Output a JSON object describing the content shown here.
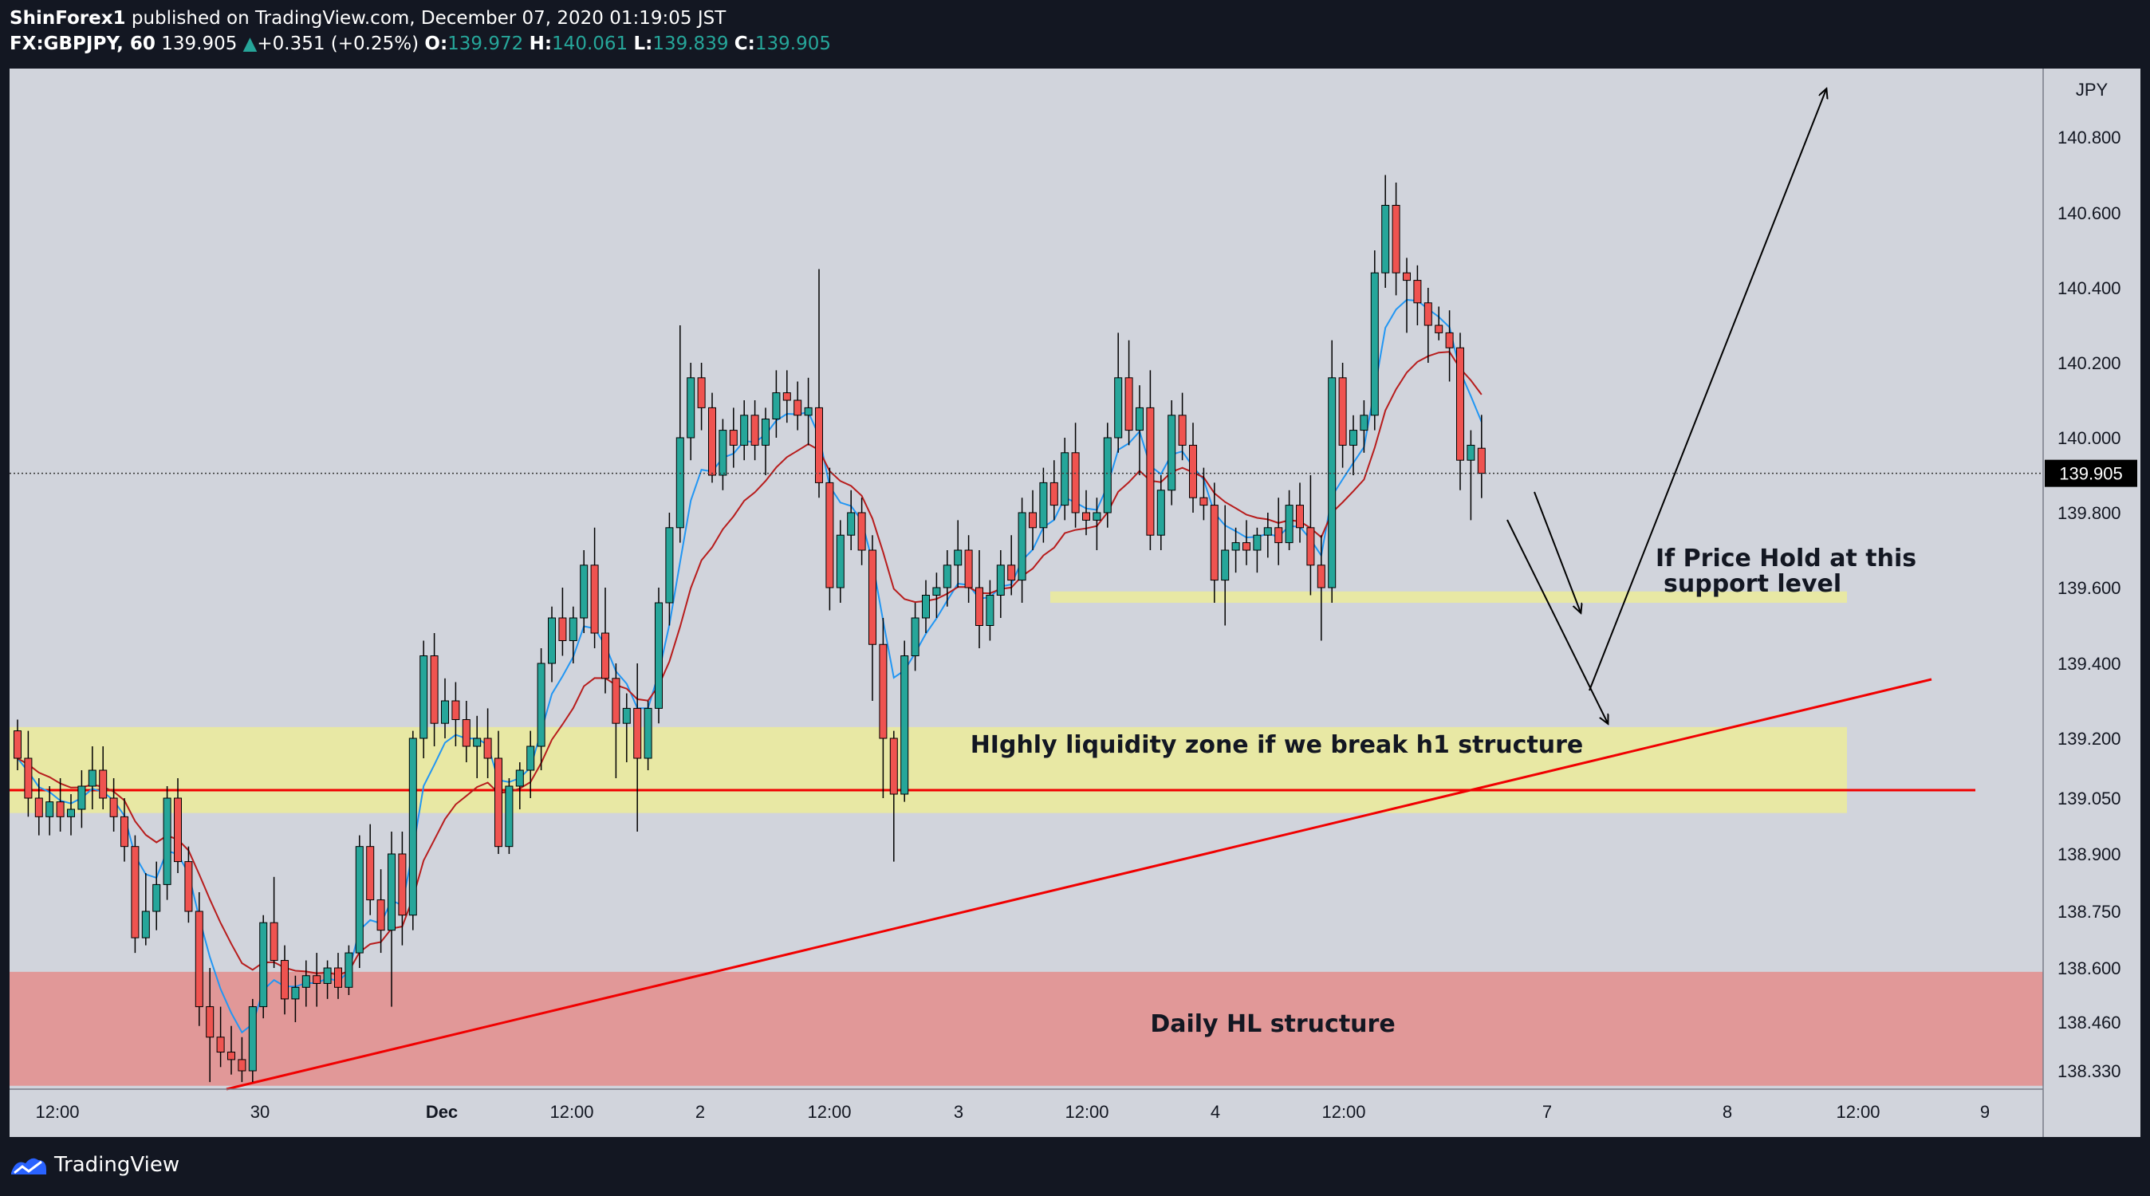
{
  "header": {
    "author": "ShinForex1",
    "published_text": "published on TradingView.com, December 07, 2020 01:19:05 JST",
    "symbol": "FX:GBPJPY, 60",
    "last": "139.905",
    "change_arrow": "▲",
    "change": "+0.351 (+0.25%)",
    "o_label": "O:",
    "o": "139.972",
    "h_label": "H:",
    "h": "140.061",
    "l_label": "L:",
    "l": "139.839",
    "c_label": "C:",
    "c": "139.905"
  },
  "footer": {
    "brand": "TradingView",
    "logo_icon": "tradingview-logo-icon"
  },
  "colors": {
    "background": "#131722",
    "panel": "#d1d4dc",
    "candle_up": "#26a69a",
    "candle_down": "#ef5350",
    "ema_fast": "#2196f3",
    "ema_slow": "#b71c1c",
    "zone_yellow": "#e8e8a4",
    "zone_red": "#e19898",
    "trendline": "#f00000",
    "price_badge": "#000000"
  },
  "chart_data": {
    "type": "candlestick",
    "symbol": "FX:GBPJPY",
    "timeframe": "60",
    "y_axis_unit": "JPY",
    "y_ticks": [
      "140.800",
      "140.600",
      "140.400",
      "140.200",
      "140.000",
      "139.800",
      "139.600",
      "139.400",
      "139.200",
      "139.050",
      "138.900",
      "138.750",
      "138.600",
      "138.460",
      "138.330"
    ],
    "x_ticks": [
      "12:00",
      "30",
      "Dec",
      "12:00",
      "2",
      "12:00",
      "3",
      "12:00",
      "4",
      "12:00",
      "7",
      "8",
      "12:00",
      "9"
    ],
    "last_price_badge": "139.905",
    "zones": [
      {
        "name": "highly-liquidity-zone",
        "from": 139.01,
        "to": 139.23,
        "color": "#e8e8a4"
      },
      {
        "name": "support-zone",
        "from": 139.56,
        "to": 139.59,
        "color": "#e8e8a4"
      },
      {
        "name": "daily-hl-zone",
        "from": 138.29,
        "to": 138.59,
        "color": "#e19898"
      }
    ],
    "horizontal_line": 139.07,
    "annotations": [
      "If Price Hold at this",
      "support level",
      "HIghly liquidity zone  if we break h1 structure",
      "Daily HL structure"
    ],
    "candles": [
      [
        139.22,
        139.25,
        139.12,
        139.15
      ],
      [
        139.15,
        139.22,
        139.0,
        139.05
      ],
      [
        139.05,
        139.1,
        138.95,
        139.0
      ],
      [
        139.0,
        139.08,
        138.95,
        139.04
      ],
      [
        139.04,
        139.1,
        138.96,
        139.0
      ],
      [
        139.0,
        139.06,
        138.95,
        139.02
      ],
      [
        139.02,
        139.12,
        138.97,
        139.08
      ],
      [
        139.08,
        139.18,
        139.02,
        139.12
      ],
      [
        139.12,
        139.18,
        139.02,
        139.05
      ],
      [
        139.05,
        139.1,
        138.96,
        139.0
      ],
      [
        139.0,
        139.05,
        138.88,
        138.92
      ],
      [
        138.92,
        138.95,
        138.64,
        138.68
      ],
      [
        138.68,
        138.85,
        138.66,
        138.75
      ],
      [
        138.75,
        138.88,
        138.7,
        138.82
      ],
      [
        138.82,
        139.08,
        138.78,
        139.05
      ],
      [
        139.05,
        139.1,
        138.85,
        138.88
      ],
      [
        138.88,
        138.92,
        138.72,
        138.75
      ],
      [
        138.75,
        138.8,
        138.45,
        138.5
      ],
      [
        138.5,
        138.6,
        138.3,
        138.42
      ],
      [
        138.42,
        138.5,
        138.34,
        138.38
      ],
      [
        138.38,
        138.45,
        138.32,
        138.36
      ],
      [
        138.36,
        138.42,
        138.3,
        138.33
      ],
      [
        138.33,
        138.52,
        138.3,
        138.5
      ],
      [
        138.5,
        138.74,
        138.47,
        138.72
      ],
      [
        138.72,
        138.84,
        138.6,
        138.62
      ],
      [
        138.62,
        138.66,
        138.48,
        138.52
      ],
      [
        138.52,
        138.58,
        138.46,
        138.55
      ],
      [
        138.55,
        138.62,
        138.5,
        138.58
      ],
      [
        138.58,
        138.64,
        138.5,
        138.56
      ],
      [
        138.56,
        138.62,
        138.52,
        138.6
      ],
      [
        138.6,
        138.64,
        138.52,
        138.55
      ],
      [
        138.55,
        138.66,
        138.53,
        138.64
      ],
      [
        138.64,
        138.95,
        138.6,
        138.92
      ],
      [
        138.92,
        138.98,
        138.74,
        138.78
      ],
      [
        138.78,
        138.86,
        138.64,
        138.7
      ],
      [
        138.7,
        138.96,
        138.5,
        138.9
      ],
      [
        138.9,
        138.96,
        138.66,
        138.74
      ],
      [
        138.74,
        139.22,
        138.7,
        139.2
      ],
      [
        139.2,
        139.46,
        139.15,
        139.42
      ],
      [
        139.42,
        139.48,
        139.18,
        139.24
      ],
      [
        139.24,
        139.36,
        139.2,
        139.3
      ],
      [
        139.3,
        139.35,
        139.18,
        139.25
      ],
      [
        139.25,
        139.3,
        139.14,
        139.18
      ],
      [
        139.18,
        139.26,
        139.1,
        139.2
      ],
      [
        139.2,
        139.28,
        139.1,
        139.15
      ],
      [
        139.15,
        139.22,
        138.9,
        138.92
      ],
      [
        138.92,
        139.1,
        138.9,
        139.08
      ],
      [
        139.08,
        139.14,
        139.02,
        139.12
      ],
      [
        139.12,
        139.22,
        139.05,
        139.18
      ],
      [
        139.18,
        139.44,
        139.12,
        139.4
      ],
      [
        139.4,
        139.55,
        139.35,
        139.52
      ],
      [
        139.52,
        139.6,
        139.42,
        139.46
      ],
      [
        139.46,
        139.55,
        139.4,
        139.52
      ],
      [
        139.52,
        139.7,
        139.48,
        139.66
      ],
      [
        139.66,
        139.76,
        139.44,
        139.48
      ],
      [
        139.48,
        139.6,
        139.32,
        139.36
      ],
      [
        139.36,
        139.4,
        139.1,
        139.24
      ],
      [
        139.24,
        139.32,
        139.14,
        139.28
      ],
      [
        139.28,
        139.4,
        138.96,
        139.15
      ],
      [
        139.15,
        139.3,
        139.12,
        139.28
      ],
      [
        139.28,
        139.6,
        139.24,
        139.56
      ],
      [
        139.56,
        139.8,
        139.5,
        139.76
      ],
      [
        139.76,
        140.3,
        139.72,
        140.0
      ],
      [
        140.0,
        140.2,
        139.94,
        140.16
      ],
      [
        140.16,
        140.2,
        140.02,
        140.08
      ],
      [
        140.08,
        140.12,
        139.88,
        139.9
      ],
      [
        139.9,
        140.05,
        139.86,
        140.02
      ],
      [
        140.02,
        140.08,
        139.92,
        139.98
      ],
      [
        139.98,
        140.1,
        139.94,
        140.06
      ],
      [
        140.06,
        140.1,
        139.94,
        139.98
      ],
      [
        139.98,
        140.08,
        139.9,
        140.05
      ],
      [
        140.05,
        140.18,
        140.0,
        140.12
      ],
      [
        140.12,
        140.18,
        140.04,
        140.1
      ],
      [
        140.1,
        140.15,
        140.02,
        140.06
      ],
      [
        140.06,
        140.16,
        139.98,
        140.08
      ],
      [
        140.08,
        140.45,
        139.84,
        139.88
      ],
      [
        139.88,
        139.92,
        139.54,
        139.6
      ],
      [
        139.6,
        139.78,
        139.56,
        139.74
      ],
      [
        139.74,
        139.86,
        139.7,
        139.8
      ],
      [
        139.8,
        139.84,
        139.66,
        139.7
      ],
      [
        139.7,
        139.74,
        139.3,
        139.45
      ],
      [
        139.45,
        139.52,
        139.05,
        139.2
      ],
      [
        139.2,
        139.22,
        138.88,
        139.06
      ],
      [
        139.06,
        139.46,
        139.04,
        139.42
      ],
      [
        139.42,
        139.56,
        139.38,
        139.52
      ],
      [
        139.52,
        139.62,
        139.48,
        139.58
      ],
      [
        139.58,
        139.64,
        139.52,
        139.6
      ],
      [
        139.6,
        139.7,
        139.55,
        139.66
      ],
      [
        139.66,
        139.78,
        139.6,
        139.7
      ],
      [
        139.7,
        139.74,
        139.56,
        139.6
      ],
      [
        139.6,
        139.7,
        139.44,
        139.5
      ],
      [
        139.5,
        139.62,
        139.46,
        139.58
      ],
      [
        139.58,
        139.7,
        139.52,
        139.66
      ],
      [
        139.66,
        139.74,
        139.58,
        139.62
      ],
      [
        139.62,
        139.84,
        139.56,
        139.8
      ],
      [
        139.8,
        139.86,
        139.7,
        139.76
      ],
      [
        139.76,
        139.92,
        139.72,
        139.88
      ],
      [
        139.88,
        139.94,
        139.78,
        139.82
      ],
      [
        139.82,
        140.0,
        139.78,
        139.96
      ],
      [
        139.96,
        140.04,
        139.76,
        139.8
      ],
      [
        139.8,
        139.86,
        139.74,
        139.78
      ],
      [
        139.78,
        139.84,
        139.7,
        139.8
      ],
      [
        139.8,
        140.04,
        139.76,
        140.0
      ],
      [
        140.0,
        140.28,
        139.96,
        140.16
      ],
      [
        140.16,
        140.26,
        139.98,
        140.02
      ],
      [
        140.02,
        140.14,
        139.9,
        140.08
      ],
      [
        140.08,
        140.18,
        139.7,
        139.74
      ],
      [
        139.74,
        139.9,
        139.7,
        139.86
      ],
      [
        139.86,
        140.1,
        139.82,
        140.06
      ],
      [
        140.06,
        140.12,
        139.94,
        139.98
      ],
      [
        139.98,
        140.04,
        139.8,
        139.84
      ],
      [
        139.84,
        139.92,
        139.78,
        139.82
      ],
      [
        139.82,
        139.88,
        139.56,
        139.62
      ],
      [
        139.62,
        139.82,
        139.5,
        139.7
      ],
      [
        139.7,
        139.76,
        139.64,
        139.72
      ],
      [
        139.72,
        139.78,
        139.66,
        139.7
      ],
      [
        139.7,
        139.76,
        139.64,
        139.74
      ],
      [
        139.74,
        139.8,
        139.68,
        139.76
      ],
      [
        139.76,
        139.84,
        139.66,
        139.72
      ],
      [
        139.72,
        139.86,
        139.7,
        139.82
      ],
      [
        139.82,
        139.88,
        139.72,
        139.76
      ],
      [
        139.76,
        139.9,
        139.58,
        139.66
      ],
      [
        139.66,
        139.74,
        139.46,
        139.6
      ],
      [
        139.6,
        140.26,
        139.56,
        140.16
      ],
      [
        140.16,
        140.2,
        139.92,
        139.98
      ],
      [
        139.98,
        140.06,
        139.9,
        140.02
      ],
      [
        140.02,
        140.1,
        139.96,
        140.06
      ],
      [
        140.06,
        140.5,
        140.02,
        140.44
      ],
      [
        140.44,
        140.7,
        140.4,
        140.62
      ],
      [
        140.62,
        140.68,
        140.38,
        140.44
      ],
      [
        140.44,
        140.48,
        140.28,
        140.42
      ],
      [
        140.42,
        140.46,
        140.3,
        140.36
      ],
      [
        140.36,
        140.4,
        140.2,
        140.3
      ],
      [
        140.3,
        140.35,
        140.26,
        140.28
      ],
      [
        140.28,
        140.34,
        140.15,
        140.24
      ],
      [
        140.24,
        140.28,
        139.86,
        139.94
      ],
      [
        139.94,
        140.02,
        139.78,
        139.98
      ],
      [
        139.972,
        140.061,
        139.839,
        139.905
      ]
    ]
  }
}
